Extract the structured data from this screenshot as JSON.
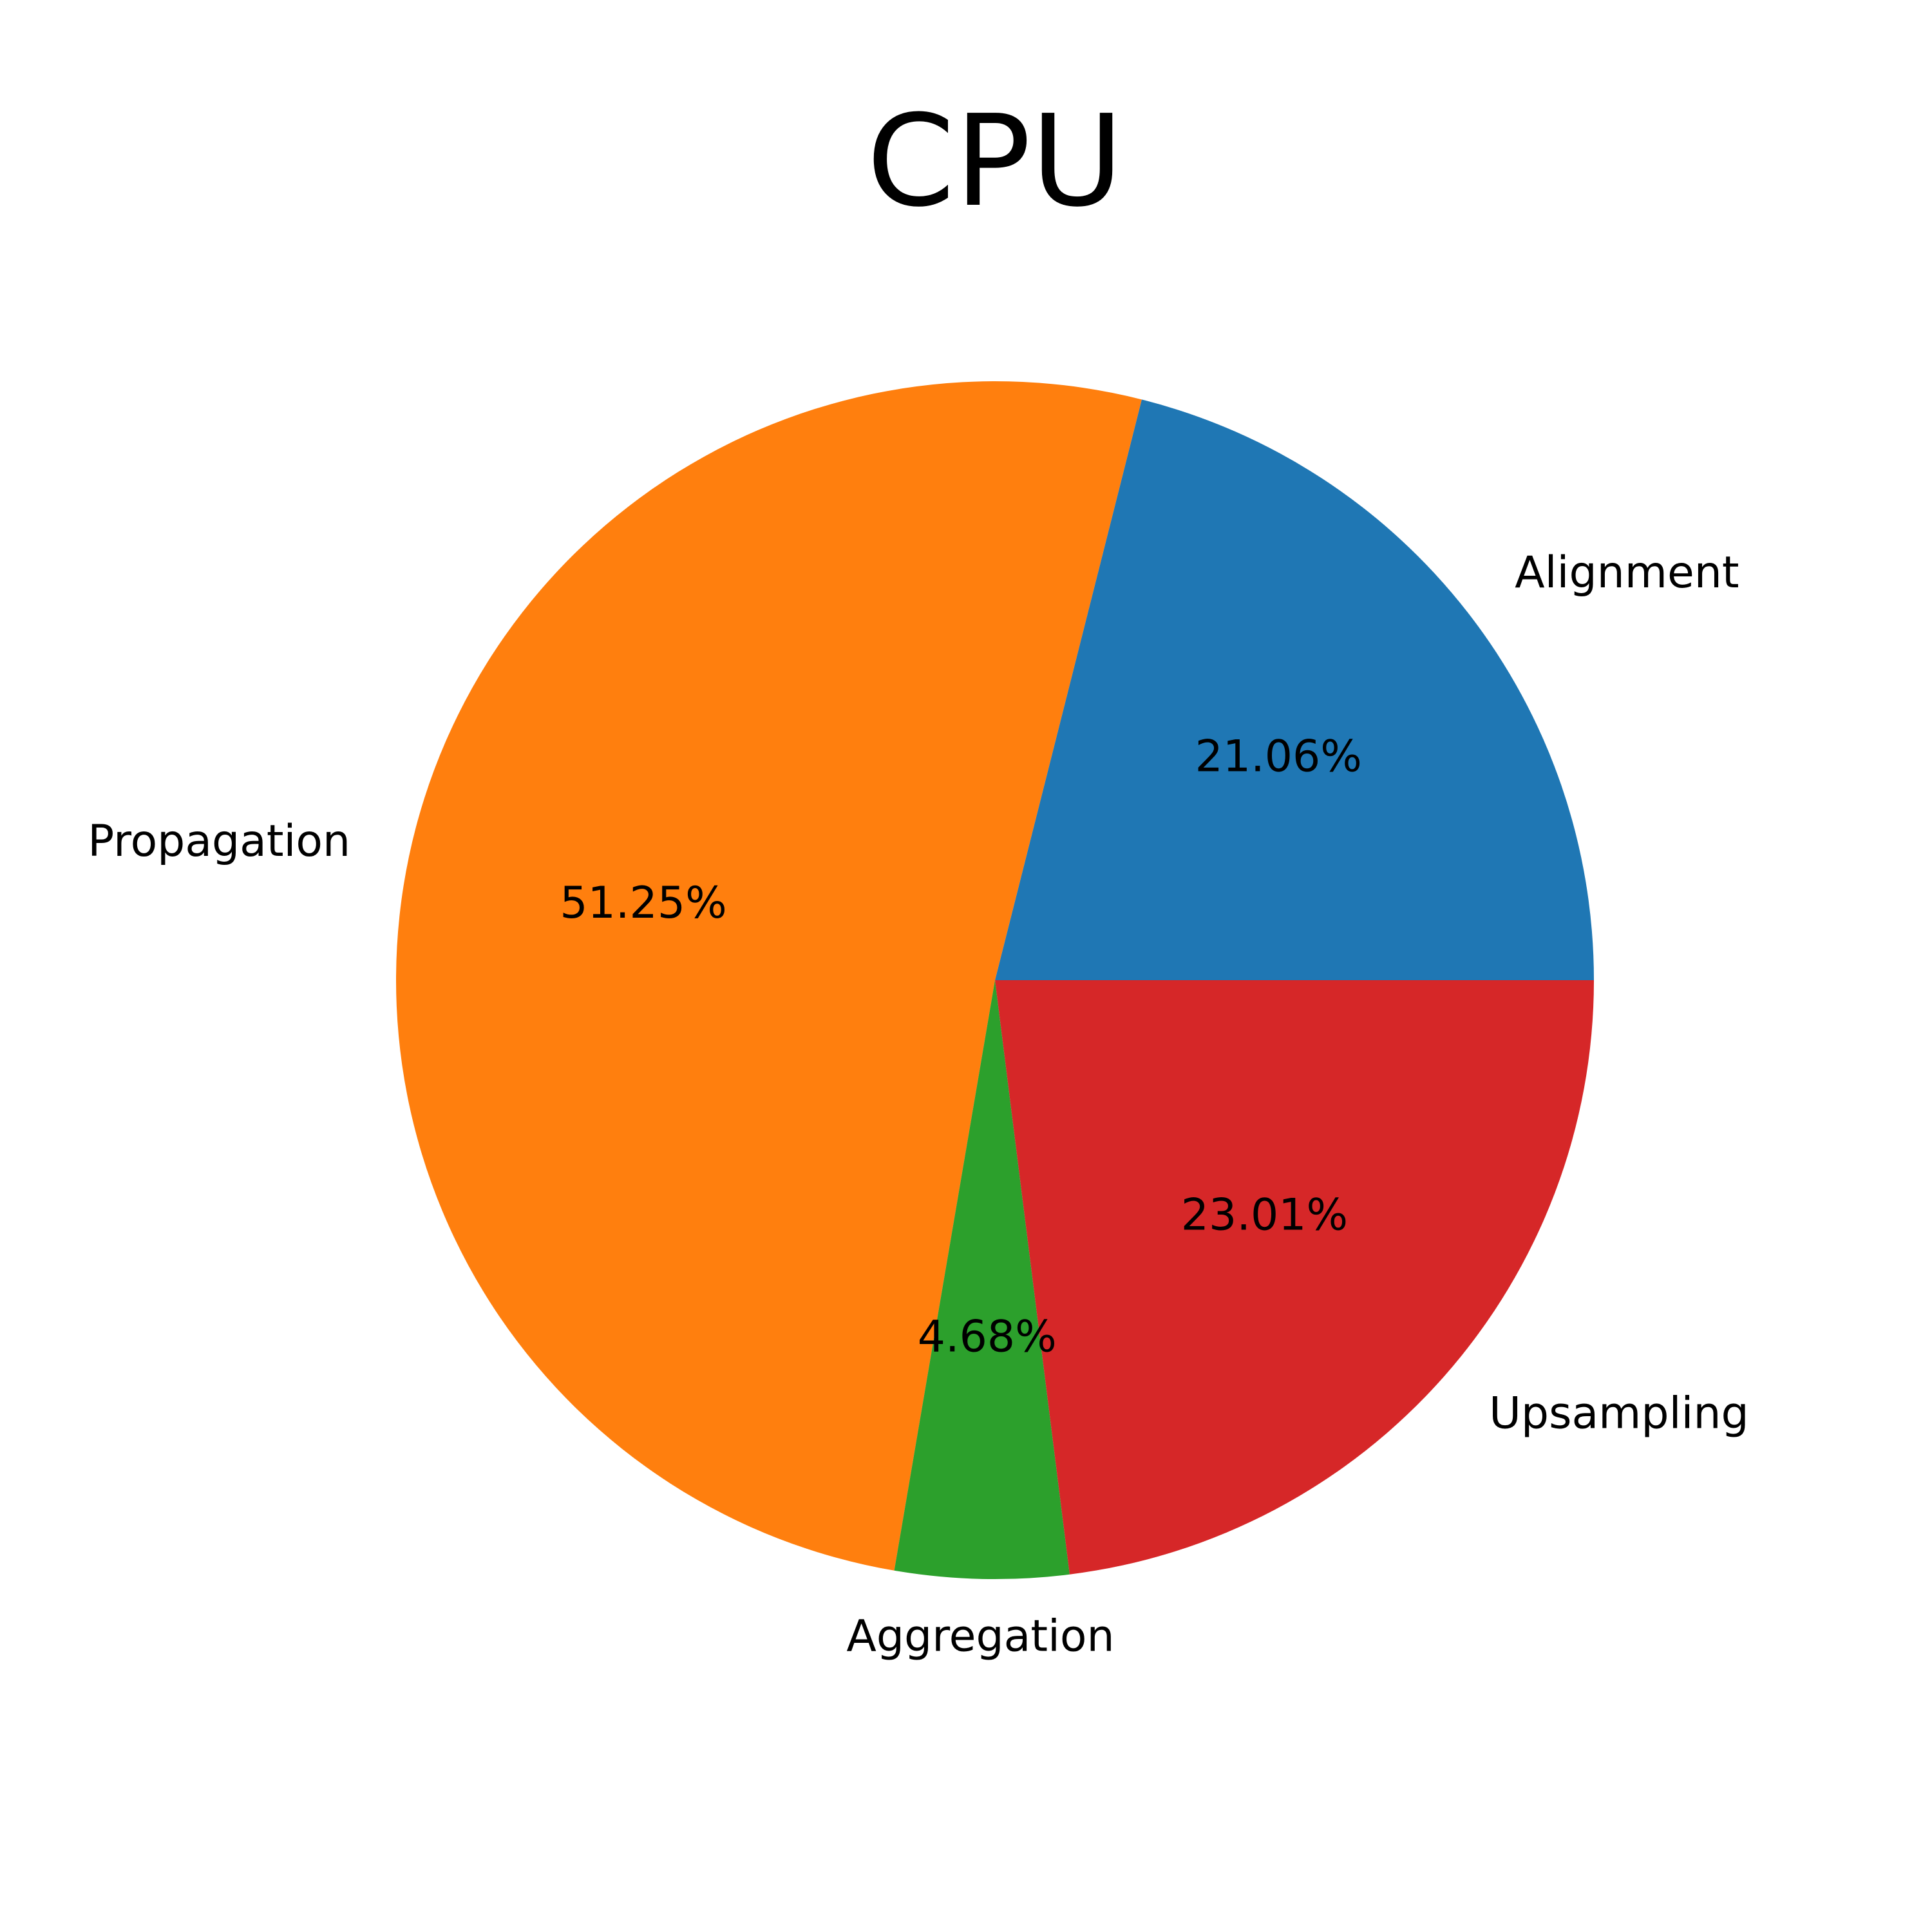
{
  "chart_data": {
    "type": "pie",
    "title": "CPU",
    "start_angle_deg": 0,
    "direction": "counterclockwise",
    "slices": [
      {
        "label": "Alignment",
        "value": 21.06,
        "pct_label": "21.06%",
        "color": "#1f77b4"
      },
      {
        "label": "Propagation",
        "value": 51.25,
        "pct_label": "51.25%",
        "color": "#ff7f0e"
      },
      {
        "label": "Aggregation",
        "value": 4.68,
        "pct_label": "4.68%",
        "color": "#2ca02c"
      },
      {
        "label": "Upsampling",
        "value": 23.01,
        "pct_label": "23.01%",
        "color": "#d62728"
      }
    ]
  }
}
